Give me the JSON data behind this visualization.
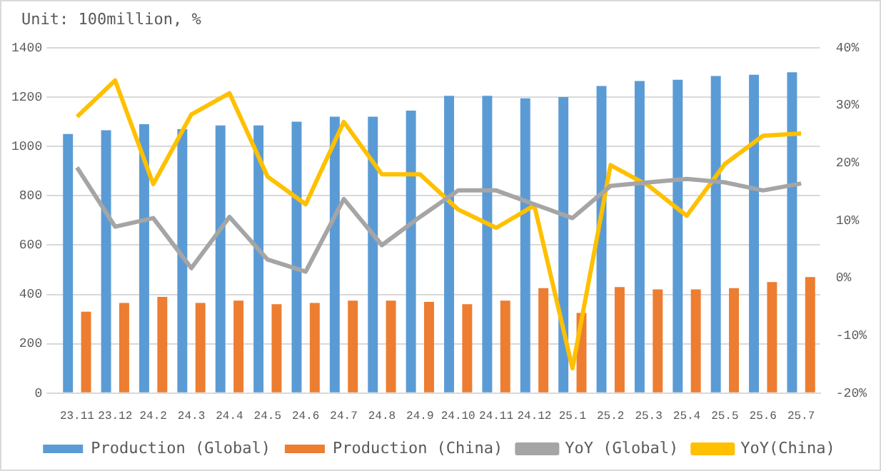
{
  "chart_data": {
    "type": "bar",
    "title": "Unit: 100million, %",
    "categories": [
      "23.11",
      "23.12",
      "24.2",
      "24.3",
      "24.4",
      "24.5",
      "24.6",
      "24.7",
      "24.8",
      "24.9",
      "24.10",
      "24.11",
      "24.12",
      "25.1",
      "25.2",
      "25.3",
      "25.4",
      "25.5",
      "25.6",
      "25.7"
    ],
    "series": [
      {
        "name": "Production (Global)",
        "color": "#5b9bd5",
        "values": [
          1050,
          1065,
          1090,
          1070,
          1085,
          1085,
          1100,
          1120,
          1120,
          1145,
          1205,
          1205,
          1195,
          1200,
          1245,
          1265,
          1270,
          1285,
          1290,
          1300
        ]
      },
      {
        "name": "Production (China)",
        "color": "#ed7d31",
        "values": [
          330,
          365,
          390,
          365,
          375,
          360,
          365,
          375,
          375,
          370,
          360,
          375,
          425,
          325,
          430,
          420,
          420,
          425,
          450,
          470
        ]
      },
      {
        "name": "YoY (Global)",
        "type": "line",
        "axis": "y2",
        "color": "#a5a5a5",
        "values": [
          19.2,
          8.9,
          10.4,
          1.7,
          10.6,
          3.2,
          1.1,
          13.7,
          5.7,
          10.6,
          15.2,
          15.2,
          12.8,
          10.4,
          16,
          16.6,
          17.2,
          16.6,
          15.2,
          16.4
        ]
      },
      {
        "name": "YoY(China)",
        "type": "line",
        "axis": "y2",
        "color": "#ffc000",
        "values": [
          28,
          34.3,
          16.3,
          28.4,
          32.1,
          17.6,
          12.8,
          27.1,
          18,
          18,
          11.9,
          8.7,
          12.6,
          -15.7,
          19.6,
          16,
          10.8,
          19.8,
          24.7,
          25.1
        ]
      }
    ],
    "ylim": [
      0,
      1400
    ],
    "yticks": [
      0,
      200,
      400,
      600,
      800,
      1000,
      1200,
      1400
    ],
    "y2lim": [
      -20,
      40
    ],
    "y2ticks": [
      {
        "value": -20,
        "label": "-20%"
      },
      {
        "value": -10,
        "label": "-10%"
      },
      {
        "value": 0,
        "label": "0%"
      },
      {
        "value": 10,
        "label": "10%"
      },
      {
        "value": 20,
        "label": "20%"
      },
      {
        "value": 30,
        "label": "30%"
      },
      {
        "value": 40,
        "label": "40%"
      }
    ],
    "grid": "y",
    "legend": "bottom",
    "marker": "none",
    "line_style": "solid"
  }
}
